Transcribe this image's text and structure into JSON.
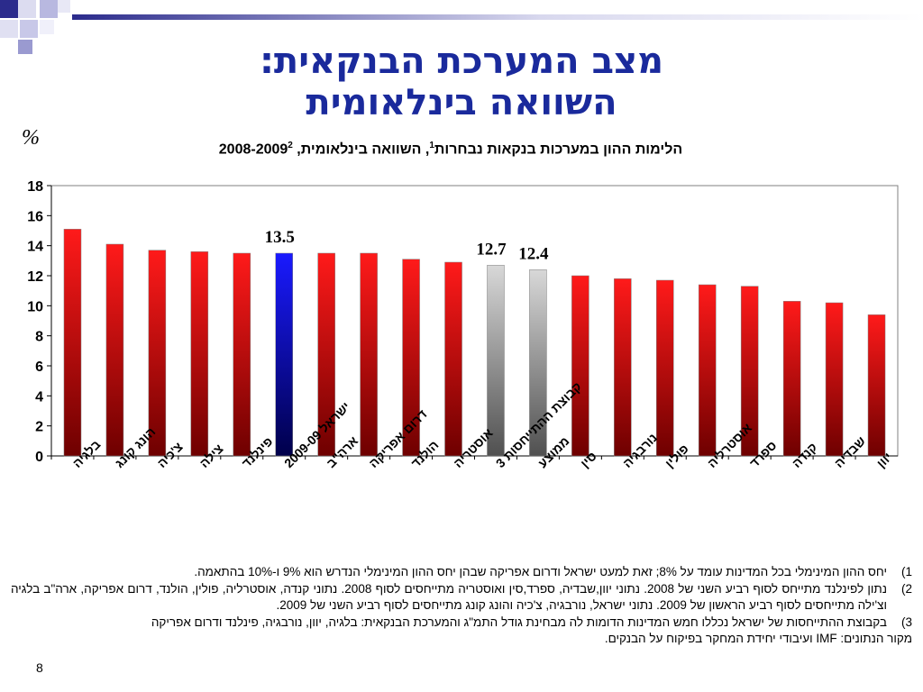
{
  "title": {
    "line1": "מצב המערכת הבנקאית:",
    "line2": "השוואה בינלאומית"
  },
  "subtitle": {
    "text": "הלימות ההון במערכות בנקאות נבחרות",
    "sup1": "1",
    "rest": ", השוואה בינלאומית, 2008-2009",
    "sup2": "2"
  },
  "unit_label": "%",
  "colors": {
    "default": "#ff1a1a",
    "israel": "#1a1aff",
    "comparison": "#a8a8a8",
    "title": "#1a2a9c"
  },
  "chart_data": {
    "type": "bar",
    "categories": [
      "בלגיה",
      "הונג קונג",
      "צ'כיה",
      "צילה",
      "פינלנד",
      "ישראל 2009-09",
      "ארה\"ב",
      "דרום אפריקה",
      "הולנד",
      "אוסטריה",
      "קבוצת ההתייחסות 3",
      "ממוצע",
      "סין",
      "נורבגיה",
      "פולין",
      "אוסטרליה",
      "ספרד",
      "קנדה",
      "שבדיה",
      "יוון"
    ],
    "values": [
      15.1,
      14.1,
      13.7,
      13.6,
      13.5,
      13.5,
      13.5,
      13.5,
      13.1,
      12.9,
      12.7,
      12.4,
      12.0,
      11.8,
      11.7,
      11.4,
      11.3,
      10.3,
      10.2,
      9.4
    ],
    "bar_color": [
      "red",
      "red",
      "red",
      "red",
      "red",
      "blue",
      "red",
      "red",
      "red",
      "red",
      "gray",
      "gray",
      "red",
      "red",
      "red",
      "red",
      "red",
      "red",
      "red",
      "red"
    ],
    "data_labels": [
      null,
      null,
      null,
      null,
      null,
      "13.5",
      null,
      null,
      null,
      null,
      "12.7",
      "12.4",
      null,
      null,
      null,
      null,
      null,
      null,
      null,
      null
    ],
    "ylim": [
      0,
      18
    ],
    "yticks": [
      0,
      2,
      4,
      6,
      8,
      10,
      12,
      14,
      16,
      18
    ],
    "grid": false,
    "legend": "none"
  },
  "notes": [
    {
      "num": "1)",
      "text": "יחס ההון המינימלי בכל המדינות עומד על 8%; זאת למעט ישראל ודרום אפריקה שבהן יחס ההון המינימלי הנדרש הוא 9% ו-10% בהתאמה."
    },
    {
      "num": "2)",
      "text": "נתון לפינלנד מתייחס לסוף רביע השני של 2008. נתוני יוון,שבדיה, ספרד,סין ואוסטריה מתייחסים לסוף 2008. נתוני קנדה, אוסטרליה, פולין, הולנד, דרום אפריקה, ארה\"ב בלגיה וצ'ילה מתייחסים לסוף רביע הראשון של 2009. נתוני ישראל, נורבגיה, צ'כיה והונג קונג מתייחסים לסוף רביע השני של 2009."
    },
    {
      "num": "3)",
      "text": "בקבוצת ההתייחסות של ישראל נכללו חמש המדינות הדומות לה מבחינת גודל התמ\"ג והמערכת הבנקאית: בלגיה, יוון, נורבגיה, פינלנד ודרום אפריקה"
    }
  ],
  "source": "מקור הנתונים: IMF ועיבודי יחידת המחקר בפיקוח על הבנקים.",
  "page_number": "8"
}
